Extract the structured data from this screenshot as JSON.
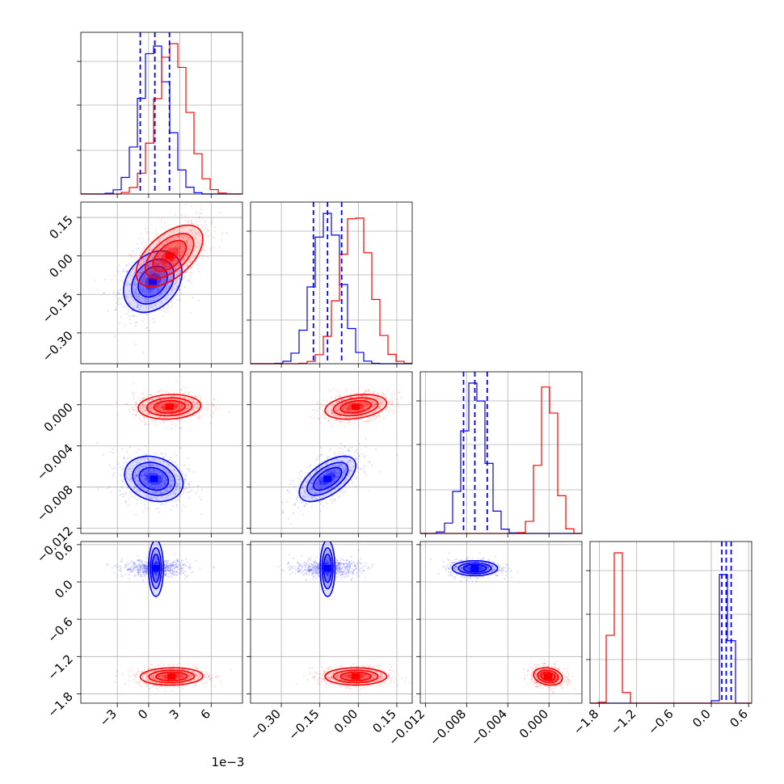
{
  "chart_data": {
    "type": "corner",
    "colors": {
      "series_a": "#0000ff",
      "series_b": "#ff0000"
    },
    "grid": true,
    "parameters": [
      {
        "range": [
          -6.5,
          9.0
        ],
        "ticks": [
          -3,
          0,
          3,
          6
        ],
        "tick_labels": [
          "−3",
          "0",
          "3",
          "6"
        ],
        "offset_label": "1e−3"
      },
      {
        "range": [
          -0.42,
          0.21
        ],
        "ticks": [
          -0.3,
          -0.15,
          0.0,
          0.15
        ],
        "tick_labels": [
          "−0.30",
          "−0.15",
          "0.00",
          "0.15"
        ]
      },
      {
        "range": [
          -0.0125,
          0.0032
        ],
        "ticks": [
          -0.012,
          -0.008,
          -0.004,
          0.0
        ],
        "tick_labels": [
          "−0.012",
          "−0.008",
          "−0.004",
          "0.000"
        ]
      },
      {
        "range": [
          -1.95,
          0.65
        ],
        "ticks": [
          -1.8,
          -1.2,
          -0.6,
          0.0,
          0.6
        ],
        "tick_labels": [
          "−1.8",
          "−1.2",
          "−0.6",
          "0.0",
          "0.6"
        ]
      }
    ],
    "histograms": [
      {
        "series_a": {
          "mean": 0.6,
          "sd": 1.35,
          "quantiles": [
            -0.8,
            0.6,
            2.0
          ]
        },
        "series_b": {
          "mean": 2.3,
          "sd": 1.5
        }
      },
      {
        "series_a": {
          "mean": -0.12,
          "sd": 0.055,
          "quantiles": [
            -0.175,
            -0.12,
            -0.065
          ]
        },
        "series_b": {
          "mean": -0.01,
          "sd": 0.06
        }
      },
      {
        "series_a": {
          "mean": -0.0072,
          "sd": 0.0011,
          "quantiles": [
            -0.0083,
            -0.0072,
            -0.006
          ]
        },
        "series_b": {
          "mean": -0.0001,
          "sd": 0.0008
        }
      },
      {
        "series_a": {
          "mean": 0.24,
          "sd": 0.06,
          "quantiles": [
            0.17,
            0.24,
            0.32
          ]
        },
        "series_b": {
          "mean": -1.53,
          "sd": 0.07
        }
      }
    ],
    "pairs": [
      {
        "row": 1,
        "col": 0,
        "series_a": {
          "center": [
            0.4,
            -0.1
          ],
          "spread": [
            1.4,
            0.06
          ],
          "corr": 0.3
        },
        "series_b": {
          "center": [
            2.0,
            0.0
          ],
          "spread": [
            1.6,
            0.06
          ],
          "corr": 0.55
        }
      },
      {
        "row": 2,
        "col": 0,
        "series_a": {
          "center": [
            0.5,
            -0.0072
          ],
          "spread": [
            1.4,
            0.0011
          ],
          "corr": -0.2
        },
        "series_b": {
          "center": [
            2.0,
            -0.0002
          ],
          "spread": [
            1.5,
            0.0006
          ],
          "corr": 0.1
        }
      },
      {
        "row": 2,
        "col": 1,
        "series_a": {
          "center": [
            -0.12,
            -0.0072
          ],
          "spread": [
            0.055,
            0.0011
          ],
          "corr": 0.6
        },
        "series_b": {
          "center": [
            -0.01,
            -0.0002
          ],
          "spread": [
            0.06,
            0.0006
          ],
          "corr": 0.3
        }
      },
      {
        "row": 3,
        "col": 0,
        "series_a": {
          "center": [
            0.7,
            0.22
          ],
          "spread": [
            1.35,
            0.06
          ],
          "corr": 0.0
        },
        "series_b": {
          "center": [
            2.2,
            -1.52
          ],
          "spread": [
            1.5,
            0.07
          ],
          "corr": 0.05
        }
      },
      {
        "row": 3,
        "col": 1,
        "series_a": {
          "center": [
            -0.12,
            0.22
          ],
          "spread": [
            0.055,
            0.06
          ],
          "corr": 0.0
        },
        "series_b": {
          "center": [
            -0.01,
            -1.52
          ],
          "spread": [
            0.06,
            0.07
          ],
          "corr": 0.0
        }
      },
      {
        "row": 3,
        "col": 2,
        "series_a": {
          "center": [
            -0.0072,
            0.22
          ],
          "spread": [
            0.0011,
            0.06
          ],
          "corr": 0.0
        },
        "series_b": {
          "center": [
            -0.0001,
            -1.52
          ],
          "spread": [
            0.0007,
            0.07
          ],
          "corr": -0.2
        }
      }
    ]
  }
}
